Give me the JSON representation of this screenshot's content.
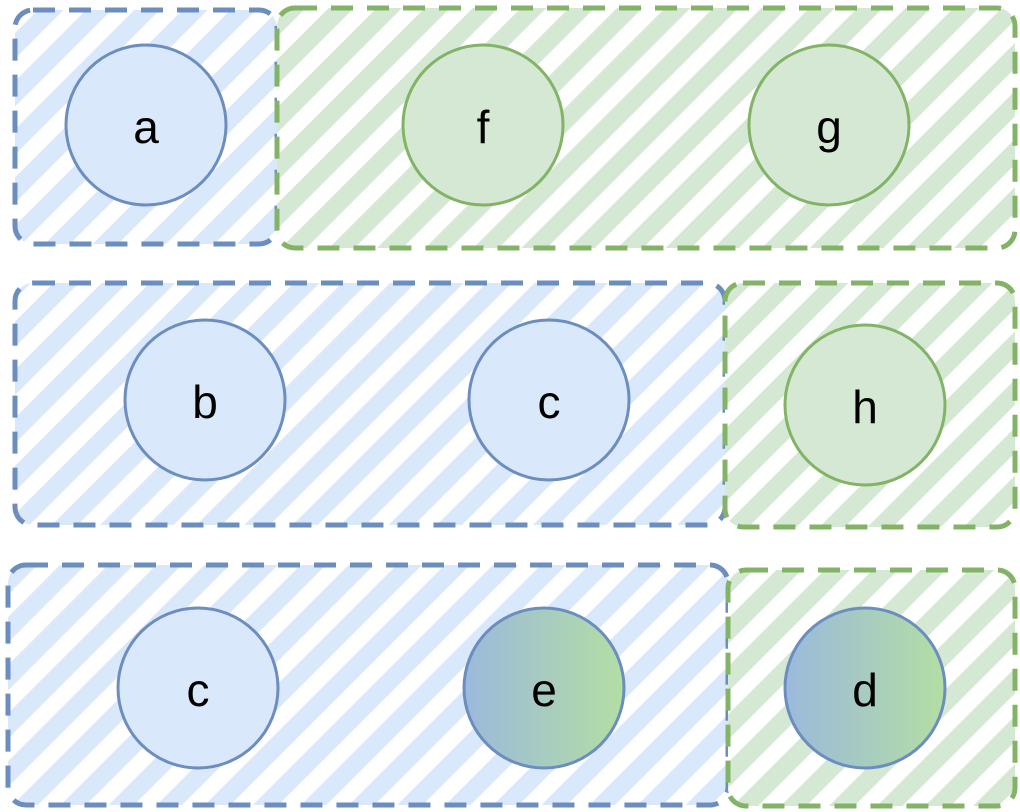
{
  "colors": {
    "blue_stroke": "#6c8ebf",
    "blue_fill": "#dae8fc",
    "green_stroke": "#82b366",
    "green_fill": "#d5e8d4",
    "gradient_start": "#9bb9dc",
    "gradient_end": "#b3dea4"
  },
  "rows": [
    {
      "groups": [
        {
          "color": "blue",
          "nodes": [
            {
              "label": "a",
              "fill": "blue"
            }
          ]
        },
        {
          "color": "green",
          "nodes": [
            {
              "label": "f",
              "fill": "green"
            },
            {
              "label": "g",
              "fill": "green"
            }
          ]
        }
      ]
    },
    {
      "groups": [
        {
          "color": "blue",
          "nodes": [
            {
              "label": "b",
              "fill": "blue"
            },
            {
              "label": "c",
              "fill": "blue"
            }
          ]
        },
        {
          "color": "green",
          "nodes": [
            {
              "label": "h",
              "fill": "green"
            }
          ]
        }
      ]
    },
    {
      "groups": [
        {
          "color": "blue",
          "nodes": [
            {
              "label": "c",
              "fill": "blue"
            },
            {
              "label": "e",
              "fill": "gradient"
            }
          ]
        },
        {
          "color": "green",
          "nodes": [
            {
              "label": "d",
              "fill": "gradient"
            }
          ]
        }
      ]
    }
  ]
}
